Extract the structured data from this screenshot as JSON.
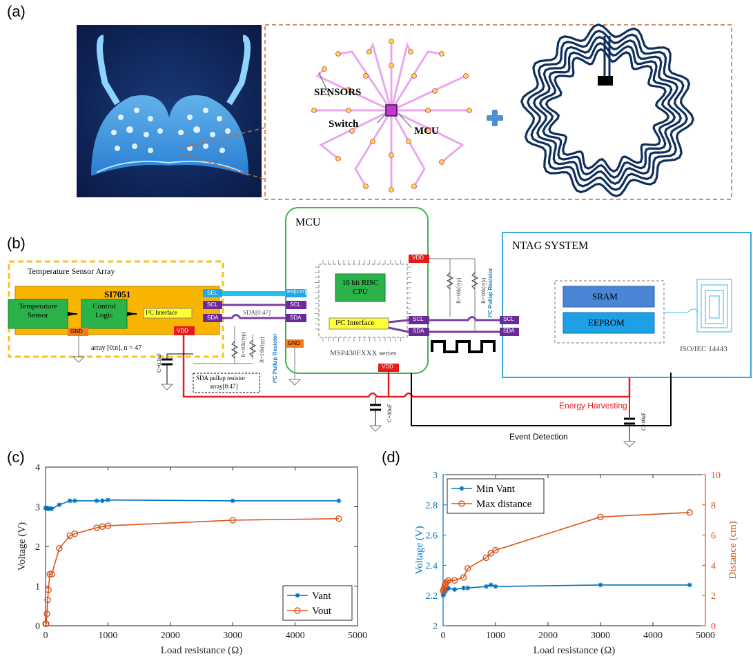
{
  "panels": {
    "a": "(a)",
    "b": "(b)",
    "c": "(c)",
    "d": "(d)"
  },
  "panel_a": {
    "sensors_label": "SENSORS",
    "switch_label": "Switch",
    "mcu_label": "MCU",
    "plus": "+"
  },
  "panel_b": {
    "mcu_title": "MCU",
    "ntag_title": "NTAG SYSTEM",
    "sensor_array_title": "Temperature Sensor Array",
    "si7051": "SI7051",
    "temperature_sensor": "Temperature Sensor",
    "control_logic": "Control Logic",
    "i2c_interface_small": "I²C Interface",
    "sel": "SEL",
    "scl": "SCL",
    "sda": "SDA",
    "gnd": "GND",
    "vdd": "VDD",
    "en": "EN[0:47]",
    "sda_bus": "SDA[0:47]",
    "array_note": "array [0:n], n = 47",
    "cap_01": "C=0.1uF",
    "cap_10": "C=10uF",
    "r_typ": "R=10k(typ)",
    "i2c_pullup": "I²C Pullup Resistor",
    "sda_pullup_line1": "SDA pullup resistor",
    "sda_pullup_line2": "array[0:47]",
    "risc_cpu_line1": "16 bit RISC",
    "risc_cpu_line2": "CPU",
    "i2c_interface": "I²C Interface",
    "msp_series": "MSP430FXXX series",
    "sram": "SRAM",
    "eeprom": "EEPROM",
    "iso": "ISO/IEC 14443",
    "energy_harvesting": "Energy Harvesting",
    "event_detection": "Event Detection"
  },
  "chart_data": [
    {
      "type": "line",
      "xlabel": "Load resistance (Ω)",
      "ylabel": "Voltage (V)",
      "xlim": [
        0,
        5000
      ],
      "ylim": [
        0,
        4
      ],
      "xticks": [
        0,
        1000,
        2000,
        3000,
        4000,
        5000
      ],
      "yticks": [
        0,
        1,
        2,
        3,
        4
      ],
      "legend_position": "bottom-right",
      "series": [
        {
          "name": "Vant",
          "color": "#0072bd",
          "marker": "star",
          "x": [
            0,
            10,
            22,
            33,
            47,
            68,
            100,
            220,
            390,
            470,
            820,
            910,
            1000,
            3000,
            4700
          ],
          "y": [
            2.97,
            2.97,
            2.96,
            2.96,
            2.95,
            2.95,
            2.95,
            3.05,
            3.15,
            3.15,
            3.15,
            3.15,
            3.17,
            3.15,
            3.15
          ]
        },
        {
          "name": "Vout",
          "color": "#d95319",
          "marker": "circle",
          "x": [
            0,
            10,
            22,
            33,
            47,
            68,
            100,
            220,
            390,
            470,
            820,
            910,
            1000,
            3000,
            4700
          ],
          "y": [
            0.05,
            0.05,
            0.3,
            0.65,
            0.9,
            1.3,
            1.3,
            1.95,
            2.27,
            2.32,
            2.47,
            2.5,
            2.52,
            2.66,
            2.7
          ]
        }
      ]
    },
    {
      "type": "line",
      "xlabel": "Load resistance (Ω)",
      "ylabel": "Voltage (V)",
      "ylabel_right": "Distance (cm)",
      "xlim": [
        0,
        5000
      ],
      "ylim": [
        2,
        3
      ],
      "ylim_right": [
        0,
        10
      ],
      "xticks": [
        0,
        1000,
        2000,
        3000,
        4000,
        5000
      ],
      "yticks": [
        2,
        2.2,
        2.4,
        2.6,
        2.8,
        3
      ],
      "yticks_right": [
        0,
        2,
        4,
        6,
        8,
        10
      ],
      "legend_position": "top-left",
      "series": [
        {
          "name": "Min Vant",
          "color": "#0072bd",
          "marker": "star",
          "axis": "left",
          "x": [
            0,
            10,
            22,
            33,
            47,
            68,
            100,
            220,
            390,
            470,
            820,
            910,
            1000,
            3000,
            4700
          ],
          "y": [
            2.2,
            2.21,
            2.22,
            2.23,
            2.23,
            2.24,
            2.25,
            2.24,
            2.25,
            2.25,
            2.26,
            2.27,
            2.26,
            2.27,
            2.27
          ]
        },
        {
          "name": "Max distance",
          "color": "#d95319",
          "marker": "circle",
          "axis": "right",
          "x": [
            0,
            10,
            22,
            33,
            47,
            68,
            100,
            220,
            390,
            470,
            820,
            910,
            1000,
            3000,
            4700
          ],
          "y": [
            2.3,
            2.4,
            2.5,
            2.7,
            2.8,
            2.9,
            3.0,
            3.0,
            3.2,
            3.8,
            4.5,
            4.8,
            5.0,
            7.2,
            7.5
          ]
        }
      ]
    }
  ]
}
